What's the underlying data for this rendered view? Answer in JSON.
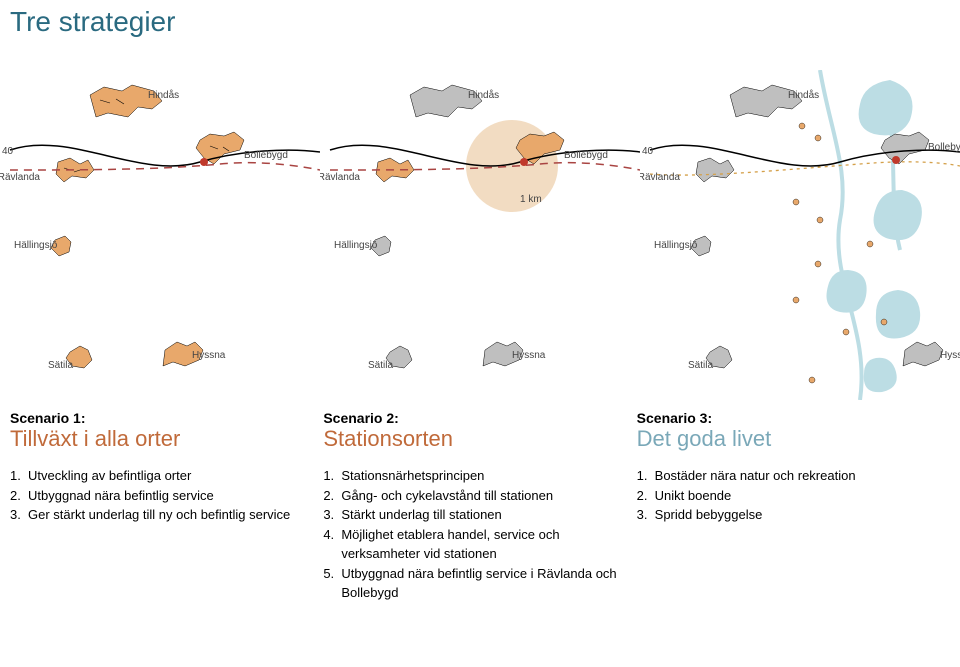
{
  "title": "Tre strategier",
  "title_color": "#2a6a80",
  "colors": {
    "map_fill": "#e8a86b",
    "map_fill_muted": "#bfbfbf",
    "road_solid": "#000000",
    "road_dash": "#a94442",
    "road_dash2": "#d4a04a",
    "hub": "#c0392b",
    "water": "#bcdde4",
    "label": "#444444",
    "circle": "#e8c090"
  },
  "places": {
    "hindas": "Hindås",
    "bollebygd": "Bollebygd",
    "ravlanda": "Rävlanda",
    "hallingsjo": "Hällingsjö",
    "satila": "Sätila",
    "hyssna": "Hyssna",
    "onekm": "1 km",
    "forty": "40"
  },
  "scenarios": [
    {
      "head": "Scenario 1:",
      "title": "Tillväxt i alla orter",
      "title_color": "#c06a3a",
      "items": [
        "Utveckling av befintliga orter",
        "Utbyggnad nära befintlig service",
        "Ger stärkt underlag till ny och befintlig service"
      ]
    },
    {
      "head": "Scenario 2:",
      "title": "Stationsorten",
      "title_color": "#c06a3a",
      "items": [
        "Stationsnärhetsprincipen",
        "Gång- och cykelavstånd till stationen",
        "Stärkt underlag till stationen",
        "Möjlighet etablera handel, service och verksamheter vid stationen",
        "Utbyggnad nära befintlig service i Rävlanda och Bollebygd"
      ]
    },
    {
      "head": "Scenario 3:",
      "title": "Det goda livet",
      "title_color": "#7aa8b8",
      "items": [
        "Bostäder nära natur och rekreation",
        "Unikt boende",
        "Spridd bebyggelse"
      ]
    }
  ]
}
